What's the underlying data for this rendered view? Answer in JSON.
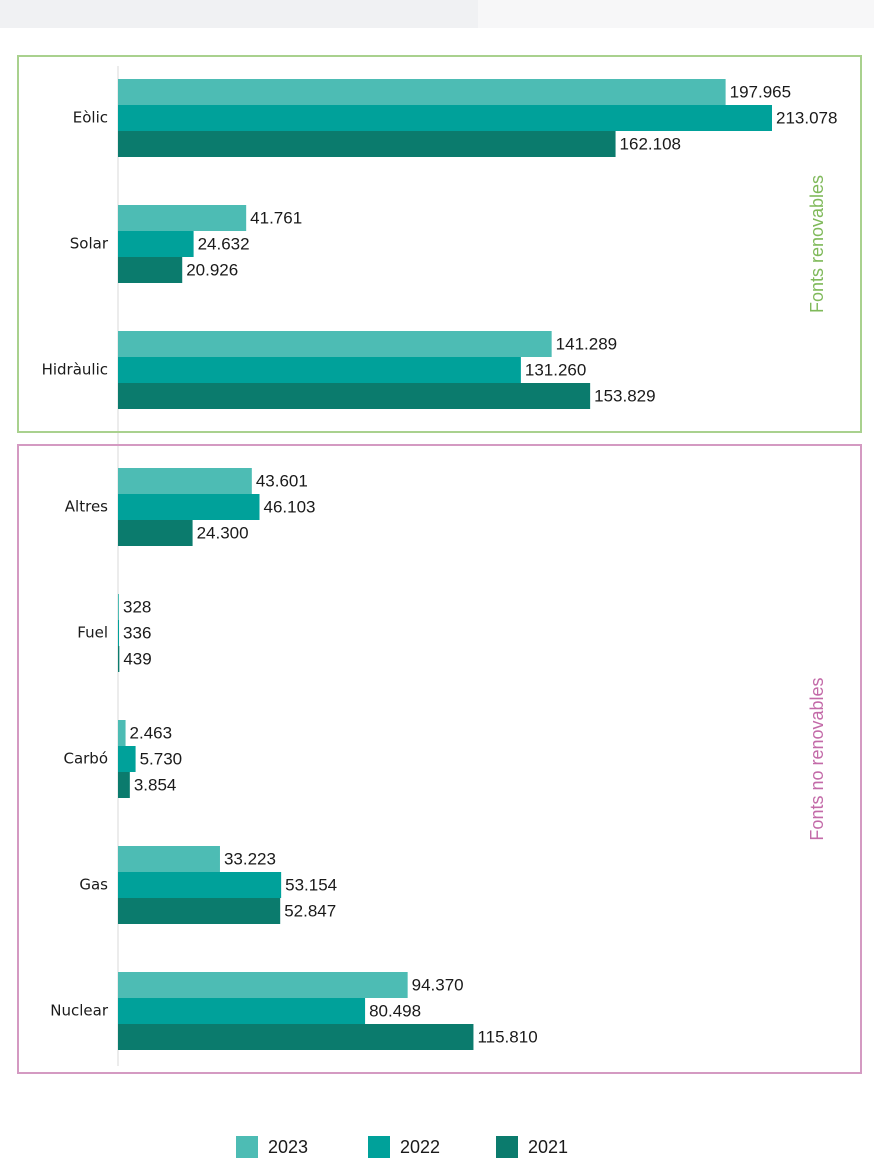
{
  "chart_data": {
    "type": "bar",
    "groups": [
      {
        "name": "Fonts renovables",
        "color": "#a9d18e",
        "label_color": "#7fb95a",
        "categories": [
          "Eòlic",
          "Solar",
          "Hidràulic"
        ]
      },
      {
        "name": "Fonts no renovables",
        "color": "#d49ac2",
        "label_color": "#c36aa8",
        "categories": [
          "Altres",
          "Fuel",
          "Carbó",
          "Gas",
          "Nuclear"
        ]
      }
    ],
    "series": [
      {
        "name": "2023",
        "color": "#4dbcb4",
        "values": [
          197965,
          41761,
          141289,
          43601,
          328,
          2463,
          33223,
          94370
        ],
        "value_labels": [
          "197.965",
          "41.761",
          "141.289",
          "43.601",
          "328",
          "2.463",
          "33.223",
          "94.370"
        ]
      },
      {
        "name": "2022",
        "color": "#00a19a",
        "values": [
          213078,
          24632,
          131260,
          46103,
          336,
          5730,
          53154,
          80498
        ],
        "value_labels": [
          "213.078",
          "24.632",
          "131.260",
          "46.103",
          "336",
          "5.730",
          "53.154",
          "80.498"
        ]
      },
      {
        "name": "2021",
        "color": "#0b7b6d",
        "values": [
          162108,
          20926,
          153829,
          24300,
          439,
          3854,
          52847,
          115810
        ],
        "value_labels": [
          "162.108",
          "20.926",
          "153.829",
          "24.300",
          "439",
          "3.854",
          "52.847",
          "115.810"
        ]
      }
    ]
  }
}
